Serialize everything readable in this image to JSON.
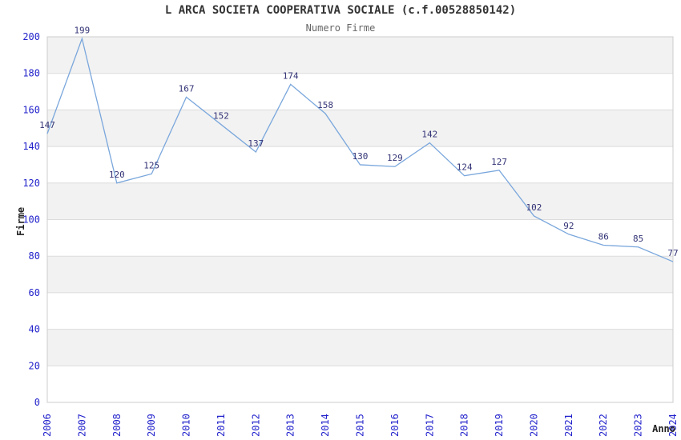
{
  "title": "L ARCA SOCIETA COOPERATIVA SOCIALE (c.f.00528850142)",
  "subtitle": "Numero Firme",
  "chart_data": {
    "type": "line",
    "x": [
      "2006",
      "2007",
      "2008",
      "2009",
      "2010",
      "2011",
      "2012",
      "2013",
      "2014",
      "2015",
      "2016",
      "2017",
      "2018",
      "2019",
      "2020",
      "2021",
      "2022",
      "2023",
      "2024"
    ],
    "values": [
      147,
      199,
      120,
      125,
      167,
      152,
      137,
      174,
      158,
      130,
      129,
      142,
      124,
      127,
      102,
      92,
      86,
      85,
      77
    ],
    "title": "Numero Firme",
    "xlabel": "Anno",
    "ylabel": "Firme",
    "ylim": [
      0,
      200
    ],
    "ytick_step": 20,
    "yticks": [
      0,
      20,
      40,
      60,
      80,
      100,
      120,
      140,
      160,
      180,
      200
    ],
    "grid": true,
    "legend": "none",
    "data_labels_visible": true
  },
  "colors": {
    "background": "#ffffff",
    "band_gray": "#f2f2f2",
    "band_white": "#ffffff",
    "grid_line": "#dcdcdc",
    "plot_border": "#cccccc",
    "series_line": "#7aa7dc",
    "tick_label": "#2222cc",
    "data_label": "#333377",
    "title_text": "#333333",
    "subtitle_text": "#666666",
    "axis_label_text": "#222222"
  }
}
